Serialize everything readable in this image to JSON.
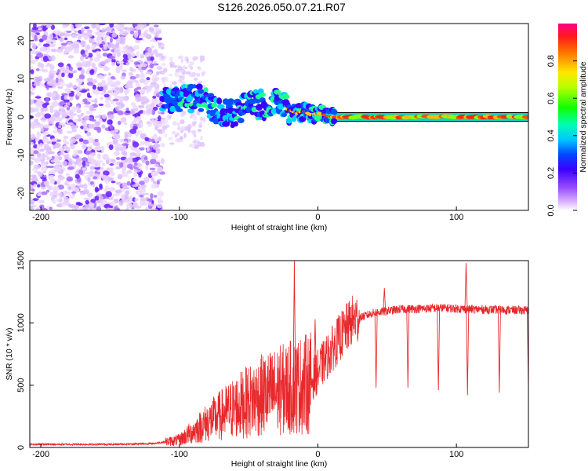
{
  "title": "S126.2026.050.07.21.R07",
  "chart_data": [
    {
      "type": "heatmap",
      "name": "spectrogram",
      "xlabel": "Height of straight line (km)",
      "ylabel": "Frequency (Hz)",
      "xlim": [
        -208,
        152
      ],
      "ylim": [
        -24.5,
        24.5
      ],
      "xticks": [
        -200,
        -100,
        0,
        100
      ],
      "yticks": [
        -20,
        -10,
        0,
        10,
        20
      ],
      "colorbar": {
        "label": "Normalized spectral amplitude",
        "range": [
          0,
          1
        ],
        "ticks": [
          "0.0",
          "0.2",
          "0.4",
          "0.6",
          "0.8"
        ],
        "tick_values": [
          0.0,
          0.2,
          0.4,
          0.6,
          0.8
        ]
      },
      "centerline_frequency": [
        {
          "x": -112,
          "y": 4.0
        },
        {
          "x": -105,
          "y": 4.5
        },
        {
          "x": -95,
          "y": 5.0
        },
        {
          "x": -85,
          "y": 4.5
        },
        {
          "x": -75,
          "y": 2.5
        },
        {
          "x": -65,
          "y": 0.5
        },
        {
          "x": -55,
          "y": 2.5
        },
        {
          "x": -45,
          "y": 3.5
        },
        {
          "x": -35,
          "y": 3.0
        },
        {
          "x": -28,
          "y": 4.0
        },
        {
          "x": -22,
          "y": 2.0
        },
        {
          "x": -15,
          "y": 1.0
        },
        {
          "x": -10,
          "y": 1.5
        },
        {
          "x": -5,
          "y": 0.5
        },
        {
          "x": 0,
          "y": 1.0
        },
        {
          "x": 5,
          "y": 0.5
        },
        {
          "x": 10,
          "y": 0.0
        },
        {
          "x": 100,
          "y": 0.0
        },
        {
          "x": 103,
          "y": -0.8
        },
        {
          "x": 106,
          "y": 0.0
        },
        {
          "x": 152,
          "y": 0.0
        }
      ]
    },
    {
      "type": "line",
      "name": "snr",
      "xlabel": "Height of straight line (km)",
      "ylabel": "SNR (10 * v/v)",
      "xlim": [
        -208,
        152
      ],
      "ylim": [
        0,
        1500
      ],
      "xticks": [
        -200,
        -100,
        0,
        100
      ],
      "yticks": [
        0,
        500,
        1000,
        1500
      ],
      "series": [
        {
          "name": "SNR",
          "color": "#e8282b",
          "trend": [
            {
              "x": -208,
              "y": 25
            },
            {
              "x": -150,
              "y": 25
            },
            {
              "x": -120,
              "y": 30
            },
            {
              "x": -100,
              "y": 60
            },
            {
              "x": -80,
              "y": 200
            },
            {
              "x": -60,
              "y": 320
            },
            {
              "x": -40,
              "y": 420
            },
            {
              "x": -20,
              "y": 480
            },
            {
              "x": -5,
              "y": 520
            },
            {
              "x": 5,
              "y": 700
            },
            {
              "x": 15,
              "y": 870
            },
            {
              "x": 25,
              "y": 1020
            },
            {
              "x": 40,
              "y": 1080
            },
            {
              "x": 60,
              "y": 1110
            },
            {
              "x": 90,
              "y": 1120
            },
            {
              "x": 110,
              "y": 1110
            },
            {
              "x": 152,
              "y": 1100
            }
          ],
          "peaks": [
            {
              "x": -17,
              "y": 1500
            },
            {
              "x": -2,
              "y": 1030
            },
            {
              "x": 48,
              "y": 1280
            },
            {
              "x": 107,
              "y": 1480
            }
          ],
          "dips": [
            {
              "x": 42,
              "y": 480
            },
            {
              "x": 65,
              "y": 480
            },
            {
              "x": 87,
              "y": 460
            },
            {
              "x": 108,
              "y": 420
            },
            {
              "x": 131,
              "y": 440
            },
            {
              "x": 152,
              "y": 480
            }
          ]
        }
      ]
    }
  ]
}
